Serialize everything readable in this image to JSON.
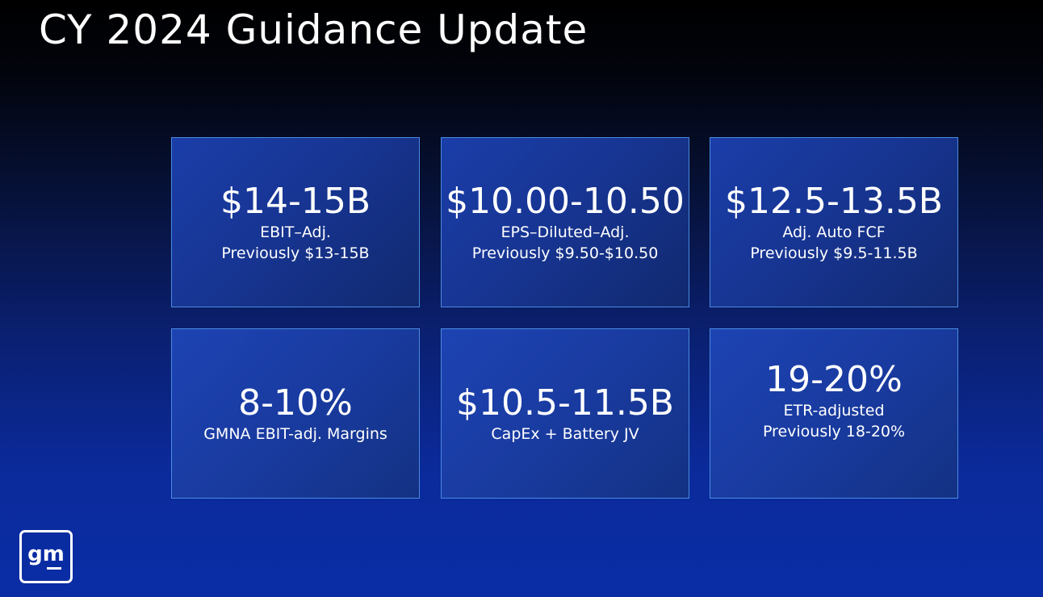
{
  "title": "CY 2024 Guidance Update",
  "cards": [
    {
      "value": "$14-15B",
      "line1": "EBIT–Adj.",
      "line2": "Previously $13-15B"
    },
    {
      "value": "$10.00-10.50",
      "line1": "EPS–Diluted–Adj.",
      "line2": "Previously $9.50-$10.50"
    },
    {
      "value": "$12.5-13.5B",
      "line1": "Adj. Auto FCF",
      "line2": "Previously $9.5-11.5B"
    },
    {
      "value": "8-10%",
      "line1": "GMNA EBIT-adj. Margins",
      "line2": ""
    },
    {
      "value": "$10.5-11.5B",
      "line1": "CapEx + Battery JV",
      "line2": ""
    },
    {
      "value": "19-20%",
      "line1": "ETR-adjusted",
      "line2": "Previously 18-20%"
    }
  ],
  "logo": {
    "text": "gm"
  },
  "colors": {
    "card_border": "#4a8be0",
    "card_fill": "#1a3da8",
    "background_bottom": "#0a2da6"
  }
}
